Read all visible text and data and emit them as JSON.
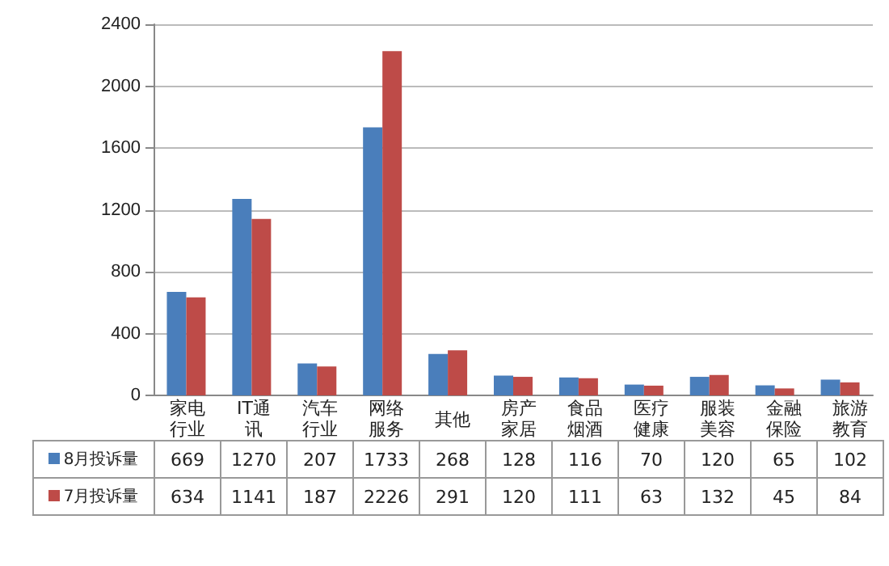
{
  "chart_data": {
    "type": "bar",
    "categories": [
      "家电行业",
      "IT通讯",
      "汽车行业",
      "网络服务",
      "其他",
      "房产家居",
      "食品烟酒",
      "医疗健康",
      "服装美容",
      "金融保险",
      "旅游教育"
    ],
    "series": [
      {
        "name": "8月投诉量",
        "color": "#4a7ebb",
        "values": [
          669,
          1270,
          207,
          1733,
          268,
          128,
          116,
          70,
          120,
          65,
          102
        ]
      },
      {
        "name": "7月投诉量",
        "color": "#be4b48",
        "values": [
          634,
          1141,
          187,
          2226,
          291,
          120,
          111,
          63,
          132,
          45,
          84
        ]
      }
    ],
    "ylim": [
      0,
      2400
    ],
    "yticks": [
      0,
      400,
      800,
      1200,
      1600,
      2000,
      2400
    ],
    "grid": "y",
    "legend": "bottom",
    "data_labels": true
  }
}
